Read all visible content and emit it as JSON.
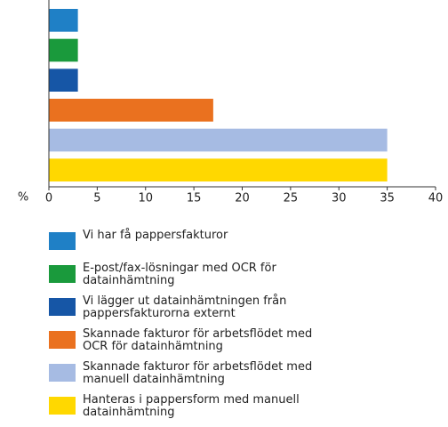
{
  "chart_data": {
    "type": "bar",
    "orientation": "horizontal",
    "x_label": "%",
    "categories": [
      "Vi har få pappersfakturor",
      "E-post/fax-lösningar med OCR för datainhämtning",
      "Vi lägger ut datainhämtningen från pappersfakturorna externt",
      "Skannade fakturor för arbetsflödet med OCR för datainhämtning",
      "Skannade fakturor för arbetsflödet med manuell datainhämtning",
      "Hanteras i pappersform med manuell datainhämtning"
    ],
    "values": [
      3,
      3,
      3,
      17,
      35,
      35
    ],
    "colors": [
      "#1f80c6",
      "#1a9a3c",
      "#1656a6",
      "#ea711f",
      "#a6bbe3",
      "#ffd800"
    ],
    "xlim": [
      0,
      40
    ],
    "xticks": [
      0,
      5,
      10,
      15,
      20,
      25,
      30,
      35,
      40
    ]
  }
}
